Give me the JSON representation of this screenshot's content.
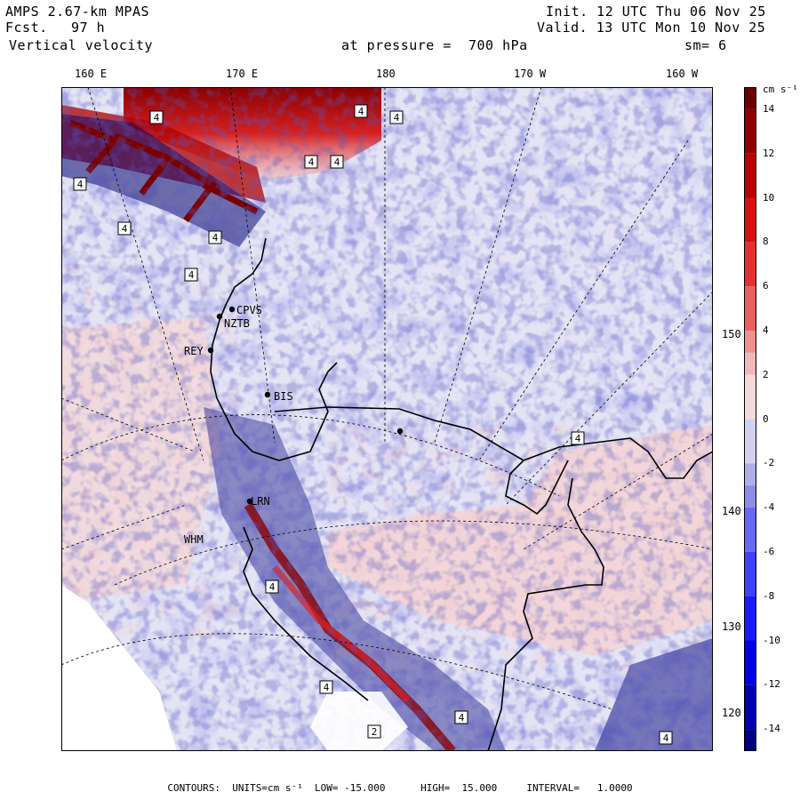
{
  "header": {
    "model": "AMPS 2.67-km MPAS",
    "forecast_label": "Fcst.",
    "forecast_hours": "97 h",
    "field": "Vertical velocity",
    "init": "Init. 12 UTC Thu 06 Nov 25",
    "valid": "Valid. 13 UTC Mon 10 Nov 25",
    "pressure_text": "at pressure =  700 hPa",
    "smoothing": "sm= 6"
  },
  "lon_labels": [
    "160 E",
    "170 E",
    "180",
    "170 W",
    "160 W"
  ],
  "lat_labels": [
    "150 W",
    "140 W",
    "130 W",
    "120 W"
  ],
  "stations": [
    "CPVS",
    "NZTB",
    "REY",
    "BIS",
    "LRN",
    "WHM"
  ],
  "colorbar": {
    "units_label": "cm s⁻¹",
    "tick_labels": [
      "14",
      "12",
      "10",
      "8",
      "6",
      "4",
      "2",
      "0",
      "-2",
      "-4",
      "-6",
      "-8",
      "-10",
      "-12",
      "-14"
    ],
    "levels": [
      -15,
      -14,
      -12,
      -10,
      -8,
      -6,
      -4,
      -2,
      0,
      2,
      4,
      6,
      8,
      10,
      12,
      14,
      15
    ],
    "colors_neg": [
      "#000080",
      "#0000b0",
      "#0000e0",
      "#1a1aff",
      "#4040ff",
      "#6868f2",
      "#8c8ce6",
      "#aeaee8",
      "#d2d2f0"
    ],
    "colors_pos": [
      "#f4dada",
      "#f0b8b8",
      "#ee9090",
      "#e86060",
      "#e23030",
      "#d81010",
      "#b80000",
      "#900000",
      "#6a0000"
    ]
  },
  "footer": "CONTOURS:  UNITS=cm s⁻¹  LOW= -15.000      HIGH=  15.000     INTERVAL=   1.0000",
  "colors": {
    "land_bg": "#e4e4f4",
    "coast": "#000000",
    "white_land": "#ffffff"
  }
}
